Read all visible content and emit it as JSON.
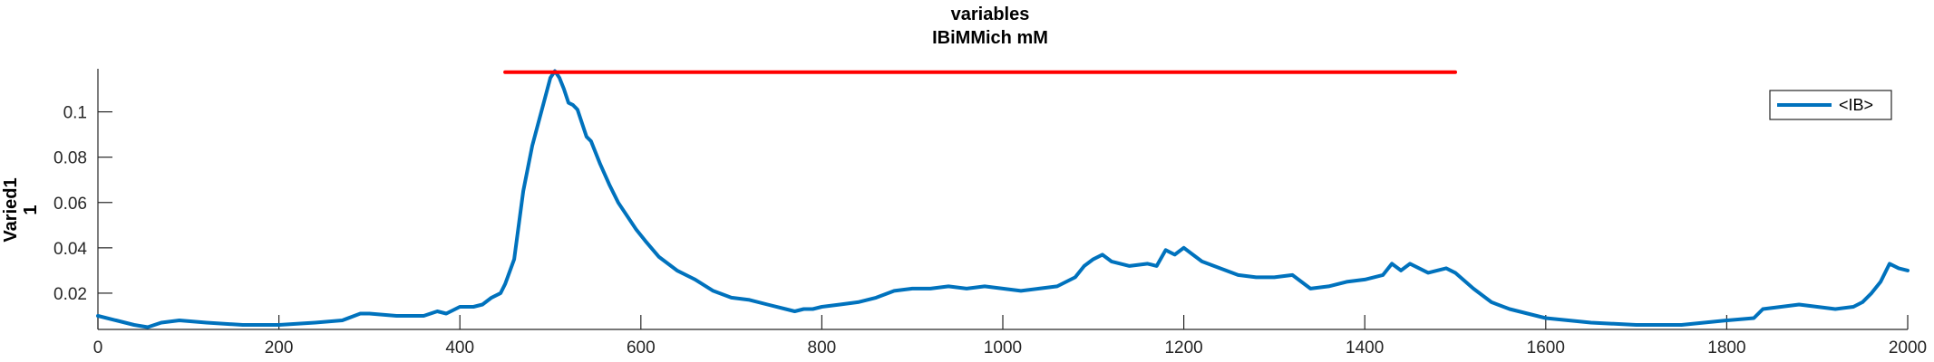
{
  "chart_data": {
    "type": "line",
    "title": "variables",
    "subtitle": "IBiMMich mM",
    "ylabel_line1": "Varied1",
    "ylabel_line2": "1",
    "xlabel": "",
    "xlim": [
      0,
      2000
    ],
    "ylim": [
      0.004,
      0.119
    ],
    "xticks": [
      0,
      200,
      400,
      600,
      800,
      1000,
      1200,
      1400,
      1600,
      1800,
      2000
    ],
    "xtick_labels": [
      "0",
      "200",
      "400",
      "600",
      "800",
      "1000",
      "1200",
      "1400",
      "1600",
      "1800",
      "2000"
    ],
    "yticks": [
      0.02,
      0.04,
      0.06,
      0.08,
      0.1
    ],
    "ytick_labels": [
      "0.02",
      "0.04",
      "0.06",
      "0.08",
      "0.1"
    ],
    "grid": false,
    "legend_position": "top-right",
    "series": [
      {
        "name": "<IB>",
        "color": "#0072BD",
        "x": [
          0,
          20,
          40,
          55,
          70,
          90,
          120,
          160,
          200,
          240,
          270,
          290,
          300,
          330,
          360,
          375,
          385,
          395,
          400,
          405,
          415,
          425,
          435,
          440,
          445,
          450,
          460,
          470,
          480,
          490,
          500,
          505,
          510,
          515,
          520,
          525,
          530,
          535,
          540,
          545,
          555,
          565,
          575,
          585,
          595,
          605,
          620,
          640,
          660,
          680,
          700,
          720,
          740,
          760,
          770,
          780,
          790,
          800,
          820,
          840,
          860,
          880,
          900,
          920,
          940,
          960,
          980,
          1000,
          1020,
          1040,
          1060,
          1080,
          1090,
          1100,
          1110,
          1120,
          1140,
          1160,
          1170,
          1180,
          1190,
          1200,
          1210,
          1220,
          1240,
          1260,
          1280,
          1300,
          1320,
          1340,
          1360,
          1380,
          1400,
          1410,
          1420,
          1430,
          1440,
          1450,
          1460,
          1470,
          1480,
          1490,
          1500,
          1520,
          1540,
          1560,
          1580,
          1600,
          1650,
          1700,
          1750,
          1800,
          1830,
          1840,
          1860,
          1880,
          1900,
          1920,
          1940,
          1950,
          1960,
          1970,
          1980,
          1990,
          2000
        ],
        "y": [
          0.01,
          0.008,
          0.006,
          0.005,
          0.007,
          0.008,
          0.007,
          0.006,
          0.006,
          0.007,
          0.008,
          0.011,
          0.011,
          0.01,
          0.01,
          0.012,
          0.011,
          0.013,
          0.014,
          0.014,
          0.014,
          0.015,
          0.018,
          0.019,
          0.02,
          0.024,
          0.035,
          0.065,
          0.085,
          0.1,
          0.115,
          0.118,
          0.115,
          0.11,
          0.104,
          0.103,
          0.101,
          0.095,
          0.089,
          0.087,
          0.077,
          0.068,
          0.06,
          0.054,
          0.048,
          0.043,
          0.036,
          0.03,
          0.026,
          0.021,
          0.018,
          0.017,
          0.015,
          0.013,
          0.012,
          0.013,
          0.013,
          0.014,
          0.015,
          0.016,
          0.018,
          0.021,
          0.022,
          0.022,
          0.023,
          0.022,
          0.023,
          0.022,
          0.021,
          0.022,
          0.023,
          0.027,
          0.032,
          0.035,
          0.037,
          0.034,
          0.032,
          0.033,
          0.032,
          0.039,
          0.037,
          0.04,
          0.037,
          0.034,
          0.031,
          0.028,
          0.027,
          0.027,
          0.028,
          0.022,
          0.023,
          0.025,
          0.026,
          0.027,
          0.028,
          0.033,
          0.03,
          0.033,
          0.031,
          0.029,
          0.03,
          0.031,
          0.029,
          0.022,
          0.016,
          0.013,
          0.011,
          0.009,
          0.007,
          0.006,
          0.006,
          0.008,
          0.009,
          0.013,
          0.014,
          0.015,
          0.014,
          0.013,
          0.014,
          0.016,
          0.02,
          0.025,
          0.033,
          0.031,
          0.03
        ]
      },
      {
        "name": "",
        "color": "#FF0000",
        "x": [
          450,
          1500
        ],
        "y": [
          0.1175,
          0.1175
        ]
      }
    ]
  }
}
